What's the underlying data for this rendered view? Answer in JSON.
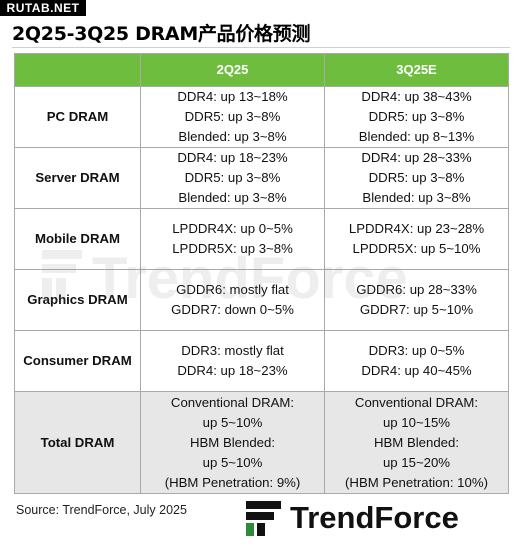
{
  "site_badge": "RUTAB.NET",
  "title": "2Q25-3Q25 DRAM产品价格预测",
  "columns": [
    "2Q25",
    "3Q25E"
  ],
  "rows": [
    {
      "label": "PC DRAM",
      "q2": [
        "DDR4: up 13~18%",
        "DDR5: up 3~8%",
        "Blended: up 3~8%"
      ],
      "q3": [
        "DDR4: up 38~43%",
        "DDR5: up 3~8%",
        "Blended: up 8~13%"
      ]
    },
    {
      "label": "Server DRAM",
      "q2": [
        "DDR4: up 18~23%",
        "DDR5: up 3~8%",
        "Blended: up 3~8%"
      ],
      "q3": [
        "DDR4: up 28~33%",
        "DDR5: up 3~8%",
        "Blended: up 3~8%"
      ]
    },
    {
      "label": "Mobile DRAM",
      "q2": [
        "LPDDR4X: up 0~5%",
        "LPDDR5X: up 3~8%"
      ],
      "q3": [
        "LPDDR4X: up 23~28%",
        "LPDDR5X: up 5~10%"
      ]
    },
    {
      "label": "Graphics DRAM",
      "q2": [
        "GDDR6: mostly flat",
        "GDDR7: down 0~5%"
      ],
      "q3": [
        "GDDR6: up 28~33%",
        "GDDR7: up 5~10%"
      ]
    },
    {
      "label": "Consumer DRAM",
      "q2": [
        "DDR3: mostly flat",
        "DDR4: up 18~23%"
      ],
      "q3": [
        "DDR3: up 0~5%",
        "DDR4: up 40~45%"
      ]
    },
    {
      "label": "Total DRAM",
      "q2": [
        "Conventional DRAM:",
        "up 5~10%",
        "HBM Blended:",
        "up 5~10%",
        "(HBM Penetration: 9%)"
      ],
      "q3": [
        "Conventional DRAM:",
        "up 10~15%",
        "HBM Blended:",
        "up 15~20%",
        "(HBM Penetration: 10%)"
      ]
    }
  ],
  "watermark": "TrendForce",
  "source": "Source: TrendForce, July 2025",
  "brand": {
    "name": "TrendForce",
    "logo_icon": "trendforce-logo-icon",
    "header_color": "#6fbd3e",
    "total_row_color": "#e7e7e7"
  }
}
